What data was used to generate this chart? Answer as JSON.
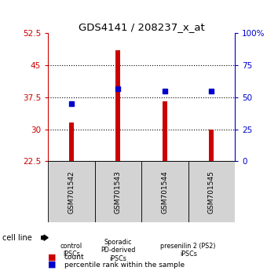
{
  "title": "GDS4141 / 208237_x_at",
  "samples": [
    "GSM701542",
    "GSM701543",
    "GSM701544",
    "GSM701545"
  ],
  "counts": [
    31.5,
    48.5,
    36.5,
    30.0
  ],
  "percentiles": [
    45,
    57,
    55,
    55
  ],
  "y_min": 22.5,
  "y_max": 52.5,
  "y_ticks": [
    22.5,
    30,
    37.5,
    45,
    52.5
  ],
  "y_ticks_right": [
    0,
    25,
    50,
    75,
    100
  ],
  "y_ticks_right_labels": [
    "0",
    "25",
    "50",
    "75",
    "100%"
  ],
  "dotted_lines": [
    30,
    37.5,
    45
  ],
  "bar_color": "#cc0000",
  "dot_color": "#0000cc",
  "bar_bottom": 22.5,
  "groups": [
    {
      "label": "control\nIPSCs",
      "span": [
        0,
        1
      ],
      "color": "#d3d3d3"
    },
    {
      "label": "Sporadic\nPD-derived\niPSCs",
      "span": [
        1,
        2
      ],
      "color": "#d3d3d3"
    },
    {
      "label": "presenilin 2 (PS2)\niPSCs",
      "span": [
        2,
        4
      ],
      "color": "#66ff66"
    }
  ],
  "cell_line_label": "cell line",
  "legend_count_label": "count",
  "legend_percentile_label": "percentile rank within the sample",
  "left_axis_color": "#cc0000",
  "right_axis_color": "#0000cc"
}
